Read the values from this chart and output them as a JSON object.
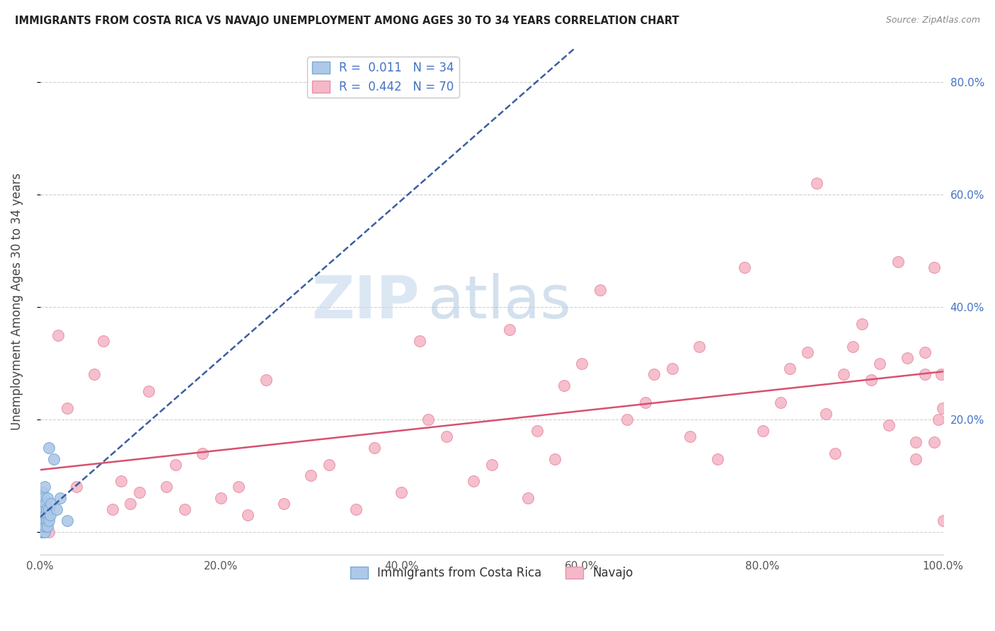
{
  "title": "IMMIGRANTS FROM COSTA RICA VS NAVAJO UNEMPLOYMENT AMONG AGES 30 TO 34 YEARS CORRELATION CHART",
  "source": "Source: ZipAtlas.com",
  "ylabel": "Unemployment Among Ages 30 to 34 years",
  "xlim": [
    0.0,
    1.0
  ],
  "ylim": [
    -0.04,
    0.86
  ],
  "yticks": [
    0.0,
    0.2,
    0.4,
    0.6,
    0.8
  ],
  "ytick_labels": [
    "",
    "20.0%",
    "40.0%",
    "60.0%",
    "80.0%"
  ],
  "xticks": [
    0.0,
    0.2,
    0.4,
    0.6,
    0.8,
    1.0
  ],
  "xtick_labels": [
    "0.0%",
    "20.0%",
    "40.0%",
    "60.0%",
    "80.0%",
    "100.0%"
  ],
  "background_color": "#ffffff",
  "grid_color": "#cccccc",
  "watermark_zip": "ZIP",
  "watermark_atlas": "atlas",
  "series1_label": "Immigrants from Costa Rica",
  "series1_color": "#adc8e8",
  "series1_edge_color": "#7aaad4",
  "series1_line_color": "#3a5fa0",
  "series1_line_style": "-",
  "series1_R": 0.011,
  "series1_N": 34,
  "series2_label": "Navajo",
  "series2_color": "#f5b8c8",
  "series2_edge_color": "#e890a8",
  "series2_line_color": "#d85070",
  "series2_line_style": "-",
  "series2_R": 0.442,
  "series2_N": 70,
  "series1_x": [
    0.001,
    0.001,
    0.002,
    0.002,
    0.003,
    0.003,
    0.003,
    0.003,
    0.004,
    0.004,
    0.004,
    0.004,
    0.005,
    0.005,
    0.005,
    0.005,
    0.005,
    0.006,
    0.006,
    0.006,
    0.007,
    0.007,
    0.008,
    0.008,
    0.009,
    0.01,
    0.01,
    0.011,
    0.012,
    0.015,
    0.018,
    0.022,
    0.03,
    0.01
  ],
  "series1_y": [
    0.0,
    0.02,
    0.01,
    0.04,
    0.0,
    0.02,
    0.05,
    0.07,
    0.0,
    0.01,
    0.03,
    0.06,
    0.0,
    0.01,
    0.02,
    0.04,
    0.08,
    0.01,
    0.03,
    0.05,
    0.02,
    0.04,
    0.01,
    0.06,
    0.03,
    0.02,
    0.04,
    0.03,
    0.05,
    0.13,
    0.04,
    0.06,
    0.02,
    0.15
  ],
  "series2_x": [
    0.01,
    0.02,
    0.03,
    0.04,
    0.06,
    0.07,
    0.08,
    0.09,
    0.1,
    0.11,
    0.12,
    0.14,
    0.15,
    0.16,
    0.18,
    0.2,
    0.22,
    0.23,
    0.25,
    0.27,
    0.3,
    0.32,
    0.35,
    0.37,
    0.4,
    0.42,
    0.43,
    0.45,
    0.48,
    0.5,
    0.52,
    0.54,
    0.55,
    0.57,
    0.58,
    0.6,
    0.62,
    0.65,
    0.67,
    0.68,
    0.7,
    0.72,
    0.73,
    0.75,
    0.78,
    0.8,
    0.82,
    0.83,
    0.85,
    0.86,
    0.87,
    0.88,
    0.89,
    0.9,
    0.91,
    0.92,
    0.93,
    0.94,
    0.95,
    0.96,
    0.97,
    0.97,
    0.98,
    0.98,
    0.99,
    0.99,
    0.995,
    0.998,
    0.999,
    1.0
  ],
  "series2_y": [
    0.0,
    0.35,
    0.22,
    0.08,
    0.28,
    0.34,
    0.04,
    0.09,
    0.05,
    0.07,
    0.25,
    0.08,
    0.12,
    0.04,
    0.14,
    0.06,
    0.08,
    0.03,
    0.27,
    0.05,
    0.1,
    0.12,
    0.04,
    0.15,
    0.07,
    0.34,
    0.2,
    0.17,
    0.09,
    0.12,
    0.36,
    0.06,
    0.18,
    0.13,
    0.26,
    0.3,
    0.43,
    0.2,
    0.23,
    0.28,
    0.29,
    0.17,
    0.33,
    0.13,
    0.47,
    0.18,
    0.23,
    0.29,
    0.32,
    0.62,
    0.21,
    0.14,
    0.28,
    0.33,
    0.37,
    0.27,
    0.3,
    0.19,
    0.48,
    0.31,
    0.16,
    0.13,
    0.32,
    0.28,
    0.47,
    0.16,
    0.2,
    0.28,
    0.22,
    0.02
  ]
}
